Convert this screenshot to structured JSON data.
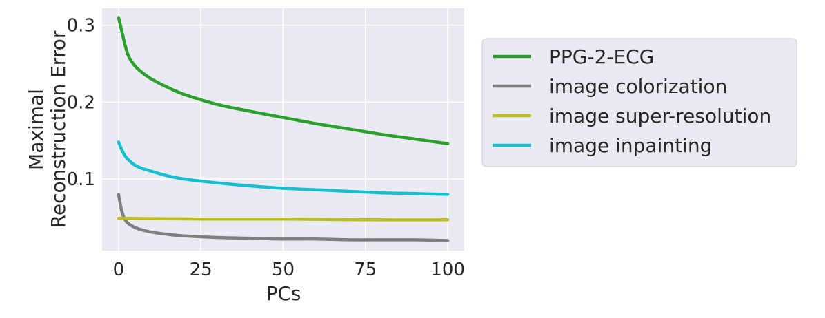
{
  "chart_data": {
    "type": "line",
    "xlabel": "PCs",
    "ylabel_lines": [
      "Maximal",
      "Reconstruction Error"
    ],
    "xlim": [
      -5,
      105
    ],
    "ylim": [
      0.007,
      0.322
    ],
    "xticks": [
      0,
      25,
      50,
      75,
      100
    ],
    "xtick_labels": [
      "0",
      "25",
      "50",
      "75",
      "100"
    ],
    "yticks": [
      0.1,
      0.2,
      0.3
    ],
    "ytick_labels": [
      "0.1",
      "0.2",
      "0.3"
    ],
    "grid": true,
    "legend_position": "outside-right",
    "series": [
      {
        "name": "PPG-2-ECG",
        "color": "#2ca02c",
        "x": [
          0,
          1,
          2,
          3,
          5,
          7,
          10,
          15,
          20,
          30,
          40,
          50,
          60,
          70,
          80,
          90,
          100
        ],
        "values": [
          0.31,
          0.292,
          0.274,
          0.26,
          0.247,
          0.239,
          0.23,
          0.219,
          0.21,
          0.197,
          0.188,
          0.18,
          0.172,
          0.165,
          0.158,
          0.152,
          0.146
        ]
      },
      {
        "name": "image colorization",
        "color": "#7f7f7f",
        "x": [
          0,
          1,
          2,
          3,
          5,
          7,
          10,
          15,
          20,
          30,
          40,
          50,
          60,
          70,
          80,
          90,
          100
        ],
        "values": [
          0.08,
          0.058,
          0.047,
          0.042,
          0.037,
          0.034,
          0.031,
          0.028,
          0.026,
          0.024,
          0.023,
          0.022,
          0.022,
          0.021,
          0.021,
          0.021,
          0.02
        ]
      },
      {
        "name": "image super-resolution",
        "color": "#bcbd22",
        "x": [
          0,
          25,
          50,
          75,
          100
        ],
        "values": [
          0.049,
          0.048,
          0.048,
          0.047,
          0.047
        ]
      },
      {
        "name": "image inpainting",
        "color": "#17becf",
        "x": [
          0,
          1,
          2,
          3,
          5,
          7,
          10,
          15,
          20,
          30,
          40,
          50,
          60,
          70,
          80,
          90,
          100
        ],
        "values": [
          0.148,
          0.138,
          0.13,
          0.125,
          0.118,
          0.114,
          0.11,
          0.104,
          0.1,
          0.095,
          0.091,
          0.088,
          0.086,
          0.084,
          0.082,
          0.081,
          0.08
        ]
      }
    ]
  }
}
